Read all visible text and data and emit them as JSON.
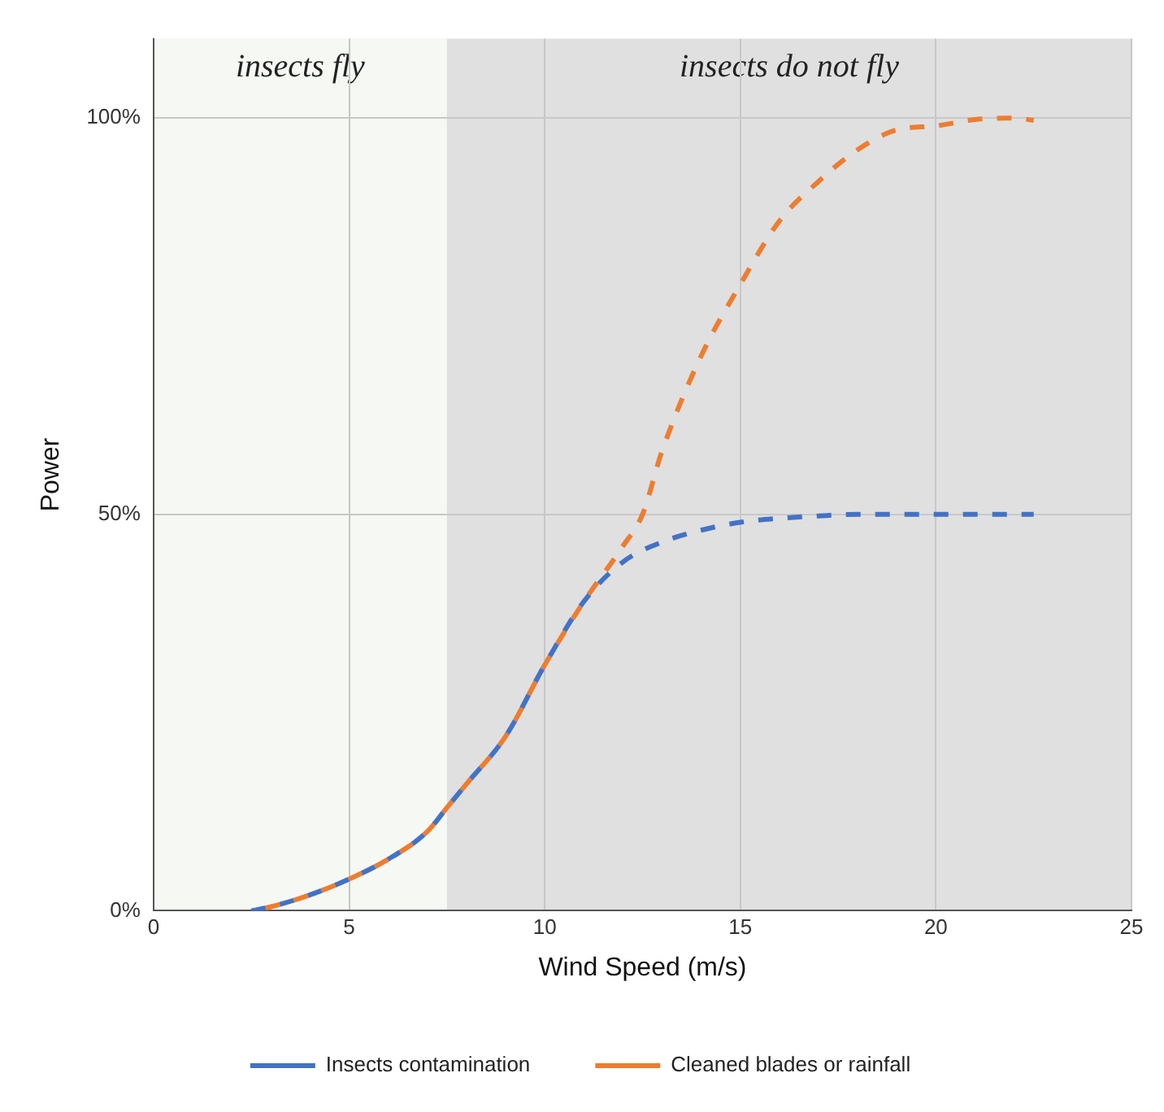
{
  "chart_data": {
    "type": "line",
    "xlabel": "Wind Speed (m/s)",
    "ylabel": "Power",
    "xlim": [
      0,
      25
    ],
    "xticks": [
      0,
      5,
      10,
      15,
      20,
      25
    ],
    "ylim": [
      0,
      110
    ],
    "yticks": [
      {
        "value": 0,
        "label": "0%"
      },
      {
        "value": 50,
        "label": "50%"
      },
      {
        "value": 100,
        "label": "100%"
      }
    ],
    "grid": true,
    "legend": "bottom",
    "marker": "none",
    "bands": [
      {
        "axis": "x",
        "from": 0,
        "to": 7.5,
        "label": "insects fly",
        "color": "#f6f8f3"
      },
      {
        "axis": "x",
        "from": 7.5,
        "to": 25,
        "label": "insects do not fly",
        "color": "#e0e0e0"
      }
    ],
    "series": [
      {
        "name": "Insects contamination",
        "color": "#4472c4",
        "line_style": "dashed",
        "x": [
          2.5,
          3,
          4,
          5,
          6,
          7,
          7.5,
          8,
          9,
          10,
          11,
          12,
          13,
          14,
          15,
          16,
          17,
          18,
          20,
          22.5
        ],
        "values": [
          0,
          0.5,
          2,
          4,
          6.5,
          10,
          13,
          16,
          22,
          31,
          39,
          44,
          46.5,
          48,
          49,
          49.5,
          49.8,
          50,
          50,
          50
        ]
      },
      {
        "name": "Cleaned blades or rainfall",
        "color": "#ed7d31",
        "line_style": "dashed",
        "x": [
          2.5,
          3,
          4,
          5,
          6,
          7,
          7.5,
          8,
          9,
          10,
          11,
          12,
          12.5,
          13,
          14,
          15,
          16,
          17,
          18,
          19,
          20,
          21,
          22,
          22.5
        ],
        "values": [
          0,
          0.5,
          2,
          4,
          6.5,
          10,
          13,
          16,
          22,
          31,
          39,
          46,
          50,
          58,
          70,
          79,
          87,
          92,
          96,
          98.5,
          99,
          99.8,
          100,
          99.7
        ]
      }
    ]
  }
}
